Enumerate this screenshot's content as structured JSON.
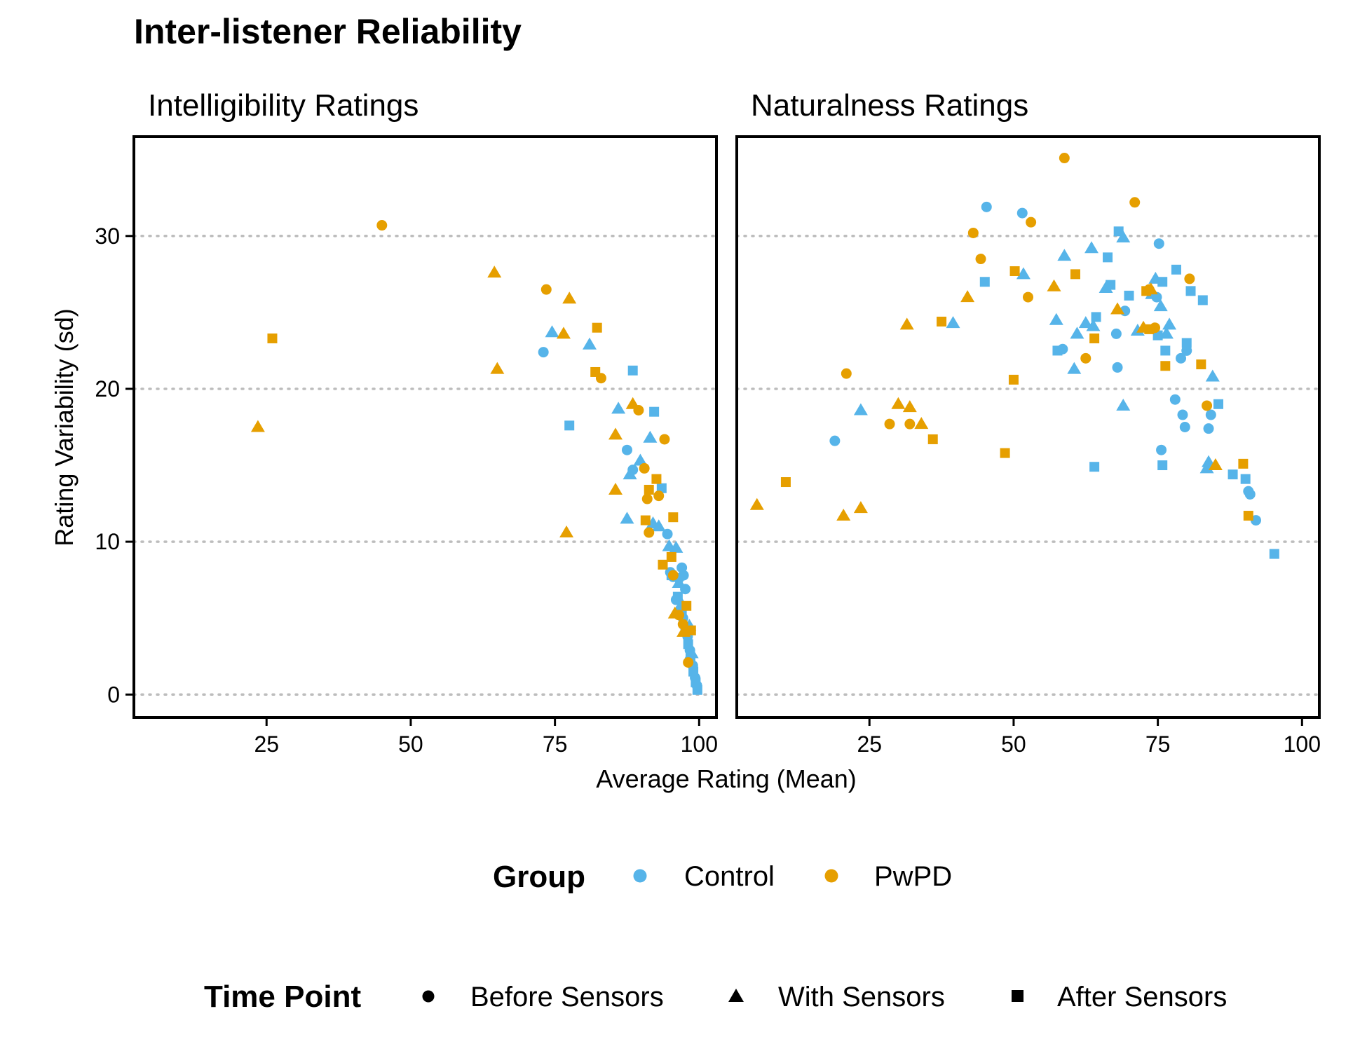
{
  "chart_data": {
    "type": "scatter",
    "title": "Inter-listener Reliability",
    "xlabel": "Average Rating (Mean)",
    "ylabel": "Rating Variability (sd)",
    "xlim": [
      2,
      103
    ],
    "ylim": [
      -1.5,
      36.5
    ],
    "x_ticks": [
      25,
      50,
      75,
      100
    ],
    "y_ticks": [
      0,
      10,
      20,
      30
    ],
    "grid": "horizontal dotted at y ticks",
    "colors": {
      "Control": "#56B4E9",
      "PwPD": "#E69F00"
    },
    "legend": [
      {
        "title": "Group",
        "entries": [
          "Control",
          "PwPD"
        ]
      },
      {
        "title": "Time Point",
        "entries": [
          "Before Sensors",
          "With Sensors",
          "After Sensors"
        ]
      }
    ],
    "legend_position": "bottom",
    "panels": [
      {
        "title": "Intelligibility Ratings",
        "series": [
          {
            "group": "Control",
            "time": "Before Sensors",
            "points": [
              [
                73,
                22.4
              ],
              [
                87.5,
                16
              ],
              [
                88.5,
                14.7
              ],
              [
                94.5,
                10.5
              ],
              [
                95,
                8
              ],
              [
                95.5,
                7.7
              ],
              [
                96,
                6.2
              ],
              [
                96.5,
                7.6
              ],
              [
                97,
                8.3
              ],
              [
                97.3,
                7.8
              ],
              [
                97.6,
                6.9
              ],
              [
                96.8,
                5.6
              ],
              [
                97.2,
                5
              ],
              [
                98,
                3.8
              ],
              [
                98.4,
                2.9
              ],
              [
                98.9,
                1.9
              ],
              [
                99.3,
                1.1
              ],
              [
                99.6,
                0.6
              ]
            ]
          },
          {
            "group": "Control",
            "time": "With Sensors",
            "points": [
              [
                74.5,
                23.7
              ],
              [
                81,
                22.9
              ],
              [
                86,
                18.7
              ],
              [
                87.5,
                11.5
              ],
              [
                88,
                14.4
              ],
              [
                89.8,
                15.3
              ],
              [
                91.5,
                16.8
              ],
              [
                92,
                11.2
              ],
              [
                93,
                11
              ],
              [
                94.8,
                9.7
              ],
              [
                96,
                9.6
              ],
              [
                96.5,
                7.3
              ],
              [
                97,
                5.9
              ],
              [
                98.3,
                4.5
              ],
              [
                98.7,
                2.7
              ]
            ]
          },
          {
            "group": "Control",
            "time": "After Sensors",
            "points": [
              [
                77.5,
                17.6
              ],
              [
                88.5,
                21.2
              ],
              [
                92.2,
                18.5
              ],
              [
                93.5,
                13.5
              ],
              [
                95.2,
                7.8
              ],
              [
                96.3,
                6.4
              ],
              [
                97,
                5.2
              ],
              [
                97.6,
                4.3
              ],
              [
                98.1,
                3.3
              ],
              [
                98.5,
                2.4
              ],
              [
                99,
                1.5
              ],
              [
                99.4,
                0.8
              ],
              [
                99.7,
                0.3
              ]
            ]
          },
          {
            "group": "PwPD",
            "time": "Before Sensors",
            "points": [
              [
                45,
                30.7
              ],
              [
                73.5,
                26.5
              ],
              [
                83,
                20.7
              ],
              [
                89.5,
                18.6
              ],
              [
                90.5,
                14.8
              ],
              [
                91,
                12.8
              ],
              [
                91.3,
                10.6
              ],
              [
                93,
                13
              ],
              [
                94,
                16.7
              ],
              [
                95.5,
                7.8
              ],
              [
                96.5,
                5.2
              ],
              [
                97.2,
                4.6
              ],
              [
                98.1,
                2.1
              ]
            ]
          },
          {
            "group": "PwPD",
            "time": "With Sensors",
            "points": [
              [
                23.5,
                17.5
              ],
              [
                64.5,
                27.6
              ],
              [
                65,
                21.3
              ],
              [
                76.5,
                23.6
              ],
              [
                77,
                10.6
              ],
              [
                77.5,
                25.9
              ],
              [
                85.5,
                17
              ],
              [
                85.5,
                13.4
              ],
              [
                88.5,
                19
              ],
              [
                95.8,
                5.3
              ],
              [
                97.3,
                4.1
              ]
            ]
          },
          {
            "group": "PwPD",
            "time": "After Sensors",
            "points": [
              [
                26,
                23.3
              ],
              [
                82,
                21.1
              ],
              [
                82.3,
                24
              ],
              [
                90.7,
                11.4
              ],
              [
                91.3,
                13.4
              ],
              [
                92.6,
                14.1
              ],
              [
                93.7,
                8.5
              ],
              [
                95.5,
                11.6
              ],
              [
                95.2,
                9
              ],
              [
                97.8,
                5.8
              ],
              [
                98.6,
                4.2
              ]
            ]
          }
        ]
      },
      {
        "title": "Naturalness Ratings",
        "series": [
          {
            "group": "Control",
            "time": "Before Sensors",
            "points": [
              [
                19,
                16.6
              ],
              [
                45.3,
                31.9
              ],
              [
                51.5,
                31.5
              ],
              [
                58.5,
                22.6
              ],
              [
                67.8,
                23.6
              ],
              [
                68,
                21.4
              ],
              [
                69.3,
                25.1
              ],
              [
                74.8,
                26
              ],
              [
                75.2,
                29.5
              ],
              [
                75.6,
                16
              ],
              [
                78,
                19.3
              ],
              [
                79,
                22
              ],
              [
                79.3,
                18.3
              ],
              [
                79.7,
                17.5
              ],
              [
                80,
                22.5
              ],
              [
                83.8,
                17.4
              ],
              [
                84.2,
                18.3
              ],
              [
                90.7,
                13.3
              ],
              [
                91,
                13.1
              ],
              [
                92,
                11.4
              ]
            ]
          },
          {
            "group": "Control",
            "time": "With Sensors",
            "points": [
              [
                23.5,
                18.6
              ],
              [
                39.5,
                24.3
              ],
              [
                51.7,
                27.5
              ],
              [
                57.4,
                24.5
              ],
              [
                58.8,
                28.7
              ],
              [
                60.5,
                21.3
              ],
              [
                61,
                23.6
              ],
              [
                62.5,
                24.3
              ],
              [
                63.5,
                29.2
              ],
              [
                63.8,
                24.1
              ],
              [
                66,
                26.6
              ],
              [
                69,
                18.9
              ],
              [
                69,
                29.9
              ],
              [
                71.5,
                23.8
              ],
              [
                74,
                26.2
              ],
              [
                74.6,
                27.2
              ],
              [
                75.5,
                25.4
              ],
              [
                76.5,
                23.6
              ],
              [
                77,
                24.2
              ],
              [
                83.5,
                14.8
              ],
              [
                83.8,
                15.2
              ],
              [
                84.5,
                20.8
              ]
            ]
          },
          {
            "group": "Control",
            "time": "After Sensors",
            "points": [
              [
                45,
                27
              ],
              [
                57.6,
                22.5
              ],
              [
                64,
                14.9
              ],
              [
                64.3,
                24.7
              ],
              [
                66.3,
                28.6
              ],
              [
                66.8,
                26.8
              ],
              [
                68.2,
                30.3
              ],
              [
                70,
                26.1
              ],
              [
                75,
                23.5
              ],
              [
                75.8,
                15
              ],
              [
                75.8,
                27
              ],
              [
                76.3,
                22.5
              ],
              [
                78.2,
                27.8
              ],
              [
                80,
                23
              ],
              [
                80.7,
                26.4
              ],
              [
                82.8,
                25.8
              ],
              [
                85.5,
                19
              ],
              [
                88,
                14.4
              ],
              [
                90.2,
                14.1
              ],
              [
                95.2,
                9.2
              ]
            ]
          },
          {
            "group": "PwPD",
            "time": "Before Sensors",
            "points": [
              [
                21,
                21
              ],
              [
                28.5,
                17.7
              ],
              [
                32,
                17.7
              ],
              [
                43,
                30.2
              ],
              [
                44.3,
                28.5
              ],
              [
                52.5,
                26
              ],
              [
                53,
                30.9
              ],
              [
                58.8,
                35.1
              ],
              [
                62.5,
                22
              ],
              [
                71,
                32.2
              ],
              [
                73.5,
                26.5
              ],
              [
                74.5,
                24
              ],
              [
                80.5,
                27.2
              ],
              [
                83.5,
                18.9
              ]
            ]
          },
          {
            "group": "PwPD",
            "time": "With Sensors",
            "points": [
              [
                5.5,
                12.4
              ],
              [
                20.5,
                11.7
              ],
              [
                23.5,
                12.2
              ],
              [
                30,
                19
              ],
              [
                31.5,
                24.2
              ],
              [
                32,
                18.8
              ],
              [
                34,
                17.7
              ],
              [
                42,
                26
              ],
              [
                57,
                26.7
              ],
              [
                68,
                25.2
              ],
              [
                72.5,
                24
              ],
              [
                73.8,
                26.5
              ],
              [
                85,
                15
              ]
            ]
          },
          {
            "group": "PwPD",
            "time": "After Sensors",
            "points": [
              [
                10.5,
                13.9
              ],
              [
                36,
                16.7
              ],
              [
                37.5,
                24.4
              ],
              [
                48.5,
                15.8
              ],
              [
                50,
                20.6
              ],
              [
                50.2,
                27.7
              ],
              [
                60.7,
                27.5
              ],
              [
                64,
                23.3
              ],
              [
                73,
                26.4
              ],
              [
                73.5,
                23.9
              ],
              [
                76.3,
                21.5
              ],
              [
                82.5,
                21.6
              ],
              [
                89.8,
                15.1
              ],
              [
                90.7,
                11.7
              ]
            ]
          }
        ]
      }
    ]
  }
}
